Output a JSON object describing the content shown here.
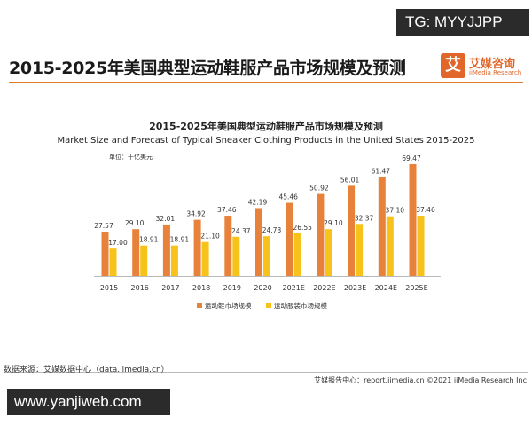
{
  "header": {
    "tg_label": "TG: MYYJJPP",
    "page_title": "2015-2025年美国典型运动鞋服产品市场规模及预测",
    "logo_char": "艾",
    "logo_cn": "艾媒咨询",
    "logo_en": "iiMedia Research"
  },
  "chart_data": {
    "type": "bar",
    "title": "2015-2025年美国典型运动鞋服产品市场规模及预测",
    "subtitle": "Market Size and Forecast of Typical Sneaker Clothing Products in the United States 2015-2025",
    "unit": "单位：十亿美元",
    "categories": [
      "2015",
      "2016",
      "2017",
      "2018",
      "2019",
      "2020",
      "2021E",
      "2022E",
      "2023E",
      "2024E",
      "2025E"
    ],
    "series": [
      {
        "name": "运动鞋市场规模",
        "color": "#e8823a",
        "values": [
          27.57,
          29.1,
          32.01,
          34.92,
          37.46,
          42.19,
          45.46,
          50.92,
          56.01,
          61.47,
          69.47
        ]
      },
      {
        "name": "运动服装市场规模",
        "color": "#f7c21a",
        "values": [
          17.0,
          18.91,
          18.91,
          21.1,
          24.37,
          24.73,
          26.55,
          29.1,
          32.37,
          37.1,
          37.46
        ]
      }
    ],
    "ylim": [
      0,
      70
    ],
    "grid": false,
    "legend": "bottom"
  },
  "footer": {
    "source": "数据来源：艾媒数据中心（data.iimedia.cn）",
    "copyright": "艾媒报告中心：report.iimedia.cn  ©2021  iiMedia Research  Inc",
    "watermark": "www.yanjiweb.com"
  }
}
